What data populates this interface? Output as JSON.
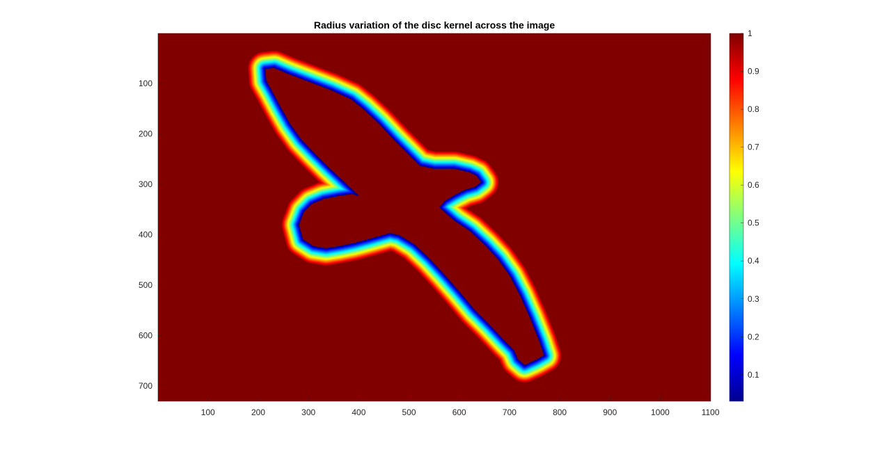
{
  "chart_data": {
    "type": "heatmap",
    "title": "Radius variation of the disc kernel across the image",
    "xlabel": "",
    "ylabel": "",
    "xlim": [
      0.5,
      1100.5
    ],
    "ylim": [
      0.5,
      730.5
    ],
    "y_direction": "reverse",
    "x_ticks": [
      100,
      200,
      300,
      400,
      500,
      600,
      700,
      800,
      900,
      1000,
      1100
    ],
    "y_ticks": [
      100,
      200,
      300,
      400,
      500,
      600,
      700
    ],
    "colormap": "jet",
    "background_value": 1,
    "background_color": "#800000",
    "colorbar": {
      "ticks": [
        0.1,
        0.2,
        0.3,
        0.4,
        0.5,
        0.6,
        0.7,
        0.8,
        0.9,
        1
      ],
      "range": [
        0.03,
        1
      ]
    },
    "contour": {
      "description_values": "bird silhouette outline; value rises from ~0.03 at the edge to 1 at distance ~35 px",
      "band_width": 35,
      "path": [
        [
          213,
          70
        ],
        [
          232,
          68
        ],
        [
          260,
          80
        ],
        [
          300,
          95
        ],
        [
          345,
          112
        ],
        [
          385,
          130
        ],
        [
          410,
          150
        ],
        [
          440,
          178
        ],
        [
          470,
          210
        ],
        [
          500,
          240
        ],
        [
          522,
          262
        ],
        [
          550,
          268
        ],
        [
          590,
          268
        ],
        [
          620,
          275
        ],
        [
          635,
          282
        ],
        [
          645,
          296
        ],
        [
          632,
          306
        ],
        [
          612,
          312
        ],
        [
          592,
          322
        ],
        [
          572,
          334
        ],
        [
          562,
          346
        ],
        [
          592,
          372
        ],
        [
          622,
          392
        ],
        [
          652,
          420
        ],
        [
          678,
          448
        ],
        [
          702,
          482
        ],
        [
          722,
          520
        ],
        [
          742,
          565
        ],
        [
          760,
          610
        ],
        [
          770,
          640
        ],
        [
          752,
          650
        ],
        [
          730,
          660
        ],
        [
          716,
          648
        ],
        [
          708,
          630
        ],
        [
          690,
          612
        ],
        [
          660,
          580
        ],
        [
          630,
          550
        ],
        [
          598,
          512
        ],
        [
          568,
          478
        ],
        [
          540,
          448
        ],
        [
          510,
          420
        ],
        [
          480,
          402
        ],
        [
          462,
          398
        ],
        [
          420,
          410
        ],
        [
          390,
          418
        ],
        [
          360,
          424
        ],
        [
          335,
          428
        ],
        [
          310,
          424
        ],
        [
          288,
          410
        ],
        [
          280,
          380
        ],
        [
          290,
          354
        ],
        [
          306,
          338
        ],
        [
          330,
          328
        ],
        [
          360,
          322
        ],
        [
          388,
          318
        ],
        [
          398,
          322
        ],
        [
          370,
          296
        ],
        [
          340,
          268
        ],
        [
          312,
          240
        ],
        [
          285,
          212
        ],
        [
          262,
          180
        ],
        [
          245,
          150
        ],
        [
          228,
          118
        ],
        [
          215,
          95
        ]
      ]
    }
  }
}
